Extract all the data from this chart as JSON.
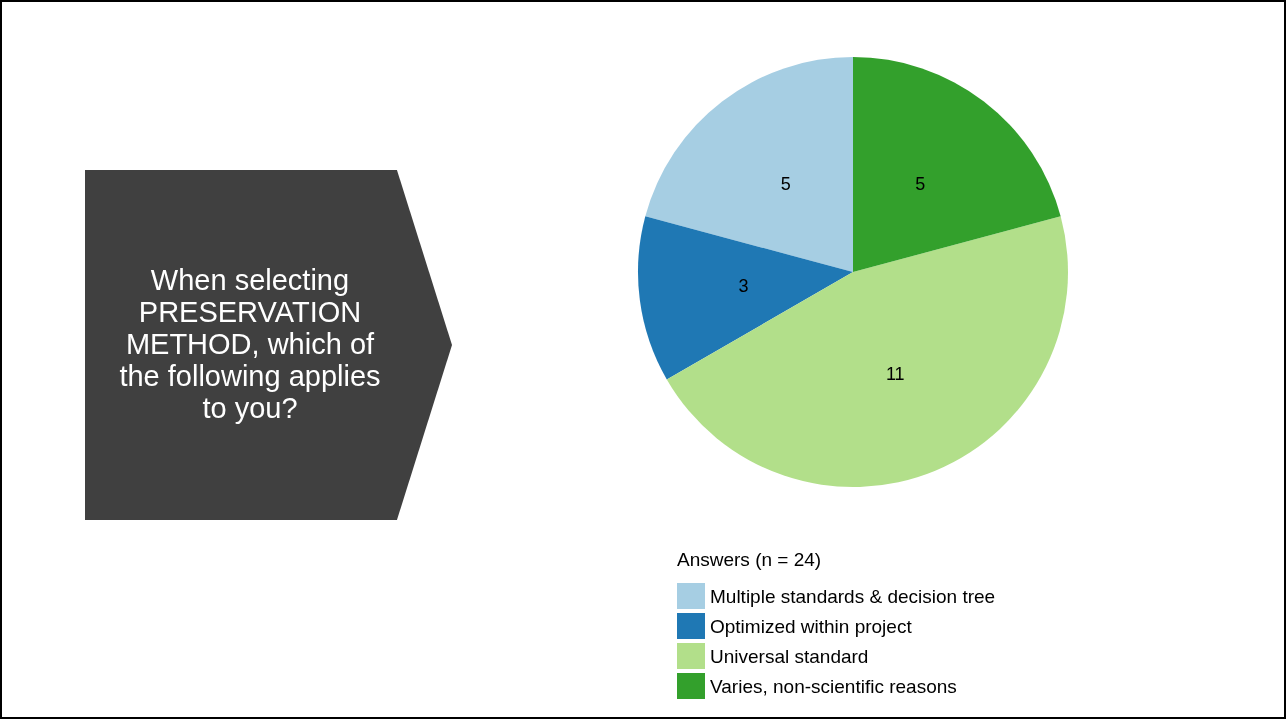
{
  "chart_data": {
    "type": "pie",
    "title": "When selecting PRESERVATION METHOD, which of the following applies to you?",
    "legend_title": "Answers (n = 24)",
    "categories": [
      "Multiple standards & decision tree",
      "Optimized within project",
      "Universal standard",
      "Varies, non-scientific reasons"
    ],
    "values": [
      5,
      3,
      11,
      5
    ],
    "colors": [
      "#a6cee3",
      "#1f78b4",
      "#b2df8a",
      "#33a02c"
    ],
    "data_labels": true,
    "legend": "bottom"
  }
}
